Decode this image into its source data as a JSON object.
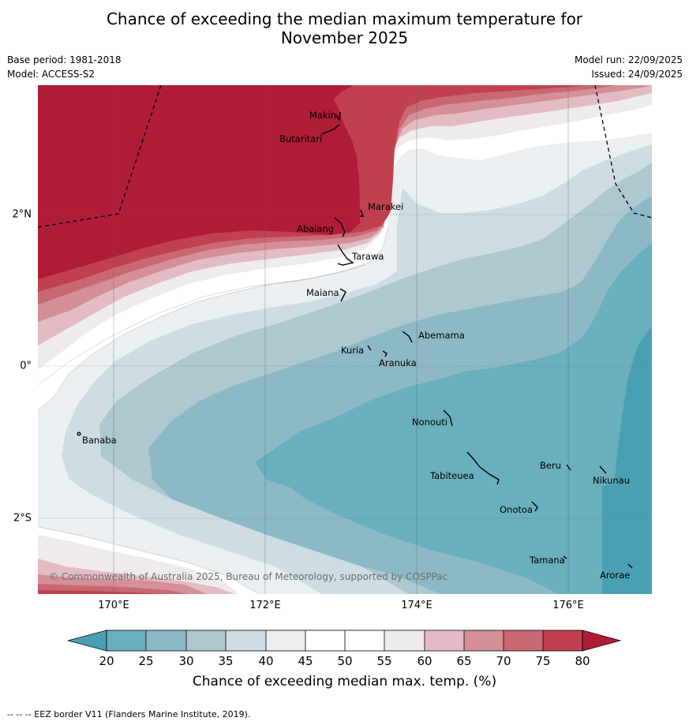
{
  "title_line1": "Chance of exceeding the median maximum temperature for",
  "title_line2": "November 2025",
  "base_period": "Base period: 1981-2018",
  "model": "Model: ACCESS-S2",
  "model_run": "Model run: 22/09/2025",
  "issued": "Issued: 24/09/2025",
  "lat_labels": [
    "2°N",
    "0°",
    "2°S"
  ],
  "lon_labels": [
    "170°E",
    "172°E",
    "174°E",
    "176°E"
  ],
  "places": [
    "Makin",
    "Butaritari",
    "Marakei",
    "Abaiang",
    "Tarawa",
    "Maiana",
    "Abemama",
    "Kuria",
    "Aranuka",
    "Banaba",
    "Nonouti",
    "Beru",
    "Tabiteuea",
    "Nikunau",
    "Onotoa",
    "Tamana",
    "Arorae"
  ],
  "copyright": "© Commonwealth of Australia 2025, Bureau of Meteorology, supported by COSPPac",
  "colorbar": {
    "ticks": [
      "20",
      "25",
      "30",
      "35",
      "40",
      "45",
      "50",
      "55",
      "60",
      "65",
      "70",
      "75",
      "80"
    ],
    "label": "Chance of exceeding median max. temp. (%)",
    "colors": {
      "below20": "#4aa0b3",
      "20-25": "#6aafbd",
      "25-30": "#8db9c6",
      "30-35": "#adc8cf",
      "35-40": "#cfdce1",
      "40-45": "#eaeff2",
      "45-55": "#ffffff",
      "55-60": "#efebeb",
      "60-65": "#e3bcc3",
      "65-70": "#d48f98",
      "70-75": "#c96872",
      "75-80": "#c0404f",
      "above80": "#b01c37"
    }
  },
  "footnote": "-- -- -- EEZ border V11 (Flanders Marine Institute, 2019)."
}
